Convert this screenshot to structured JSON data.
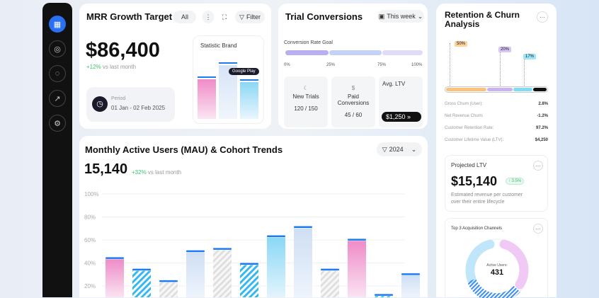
{
  "sidebar": {
    "items": [
      "dashboard-icon",
      "compass-icon",
      "chat-icon",
      "trend-icon",
      "settings-icon"
    ]
  },
  "mrr": {
    "title": "MRR Growth Target",
    "filter_all": "All",
    "filter_label": "Filter",
    "value": "$86,400",
    "change": "+12%",
    "change_label": "vs last month",
    "period_label": "Period",
    "period_value": "01 Jan - 02 Feb 2025",
    "brand_title": "Statistic Brand",
    "tooltip": "Google Play",
    "brand_values": [
      55,
      73,
      51
    ]
  },
  "trial": {
    "title": "Trial Conversions",
    "range": "This week",
    "goal_label": "Conversion Rate Goal",
    "ticks": [
      "0%",
      "25%",
      "75%",
      "100%"
    ],
    "cards": [
      {
        "label": "New Trials",
        "value": "120 / 150"
      },
      {
        "label": "Paid Conversions",
        "value": "45 / 60"
      },
      {
        "label": "Avg. LTV",
        "value": "$1,250"
      }
    ]
  },
  "retention": {
    "title": "Retention & Churn Analysis",
    "markers": [
      "50%",
      "20%",
      "17%"
    ],
    "stats": [
      {
        "label": "Gross Churn (User):",
        "value": "2.8%"
      },
      {
        "label": "Net Revenue Churn:",
        "value": "-1.2%"
      },
      {
        "label": "Customer Retention Rate:",
        "value": "97.2%"
      },
      {
        "label": "Customer Lifetime Value (LTV):",
        "value": "$4,250"
      }
    ],
    "projected": {
      "title": "Projected LTV",
      "value": "$15,140",
      "badge": "↑ 3.5%",
      "desc": "Estimated revenue per customer over their entire lifecycle"
    },
    "channels": {
      "title": "Top 3 Acquisition Channels",
      "center_label": "Active Users:",
      "center_value": "431"
    }
  },
  "mau": {
    "title": "Monthly Active Users (MAU) & Cohort Trends",
    "year": "2024",
    "value": "15,140",
    "change": "+32%",
    "change_label": "vs last month"
  },
  "chart_data": {
    "type": "bar",
    "yticks": [
      "100%",
      "80%",
      "60%",
      "40%",
      "20%"
    ],
    "ylim": [
      0,
      100
    ],
    "values": [
      45,
      35,
      25,
      51,
      53,
      40,
      64,
      72,
      35,
      61,
      13,
      31
    ],
    "styles": [
      "pink",
      "stripe-blue",
      "stripe-gray",
      "lightblue",
      "stripe-gray",
      "stripe-blue",
      "cyan",
      "lightblue",
      "stripe-gray",
      "pink",
      "stripe-blue",
      "lightblue"
    ]
  }
}
